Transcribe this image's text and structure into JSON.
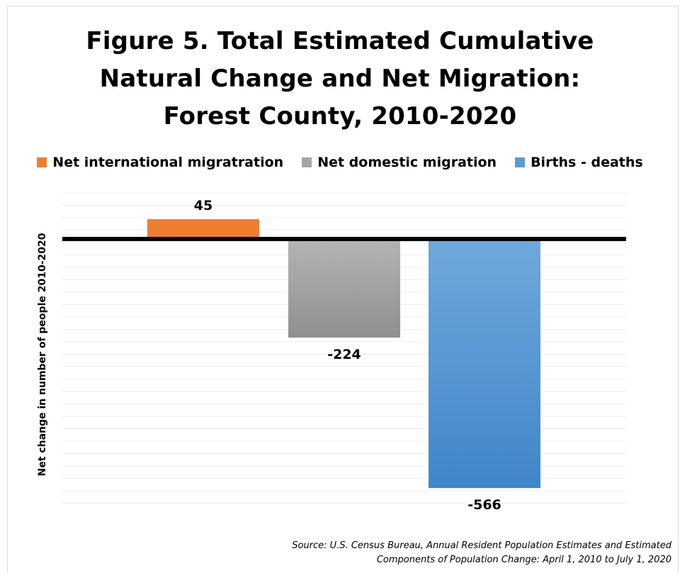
{
  "title_lines": [
    "Figure 5. Total Estimated Cumulative",
    "Natural Change and Net Migration:",
    "Forest County, 2010-2020"
  ],
  "legend": [
    {
      "label": "Net international migratration",
      "color": "#ED7D31"
    },
    {
      "label": "Net domestic migration",
      "color": "#A5A5A5"
    },
    {
      "label": "Births  - deaths",
      "color": "#5B9BD5"
    }
  ],
  "source_lines": [
    "Source: U.S. Census Bureau, Annual Resident Population Estimates and Estimated",
    "Components of Population Change: April 1, 2010 to July 1, 2020"
  ],
  "chart_data": {
    "type": "bar",
    "title": "Figure 5. Total Estimated Cumulative Natural Change and Net Migration: Forest County, 2010-2020",
    "ylabel": "Net change in number of people 2010-2020",
    "xlabel": "",
    "series": [
      {
        "name": "Net international migratration",
        "values": [
          45
        ],
        "color": "#ED7D31",
        "data_label": "45"
      },
      {
        "name": "Net domestic migration",
        "values": [
          -224
        ],
        "color": "#A5A5A5",
        "data_label": "-224"
      },
      {
        "name": "Births  - deaths",
        "values": [
          -566
        ],
        "color": "#5B9BD5",
        "data_label": "-566"
      }
    ],
    "ylim": [
      -600,
      100
    ],
    "grid": true,
    "legend_position": "top"
  }
}
